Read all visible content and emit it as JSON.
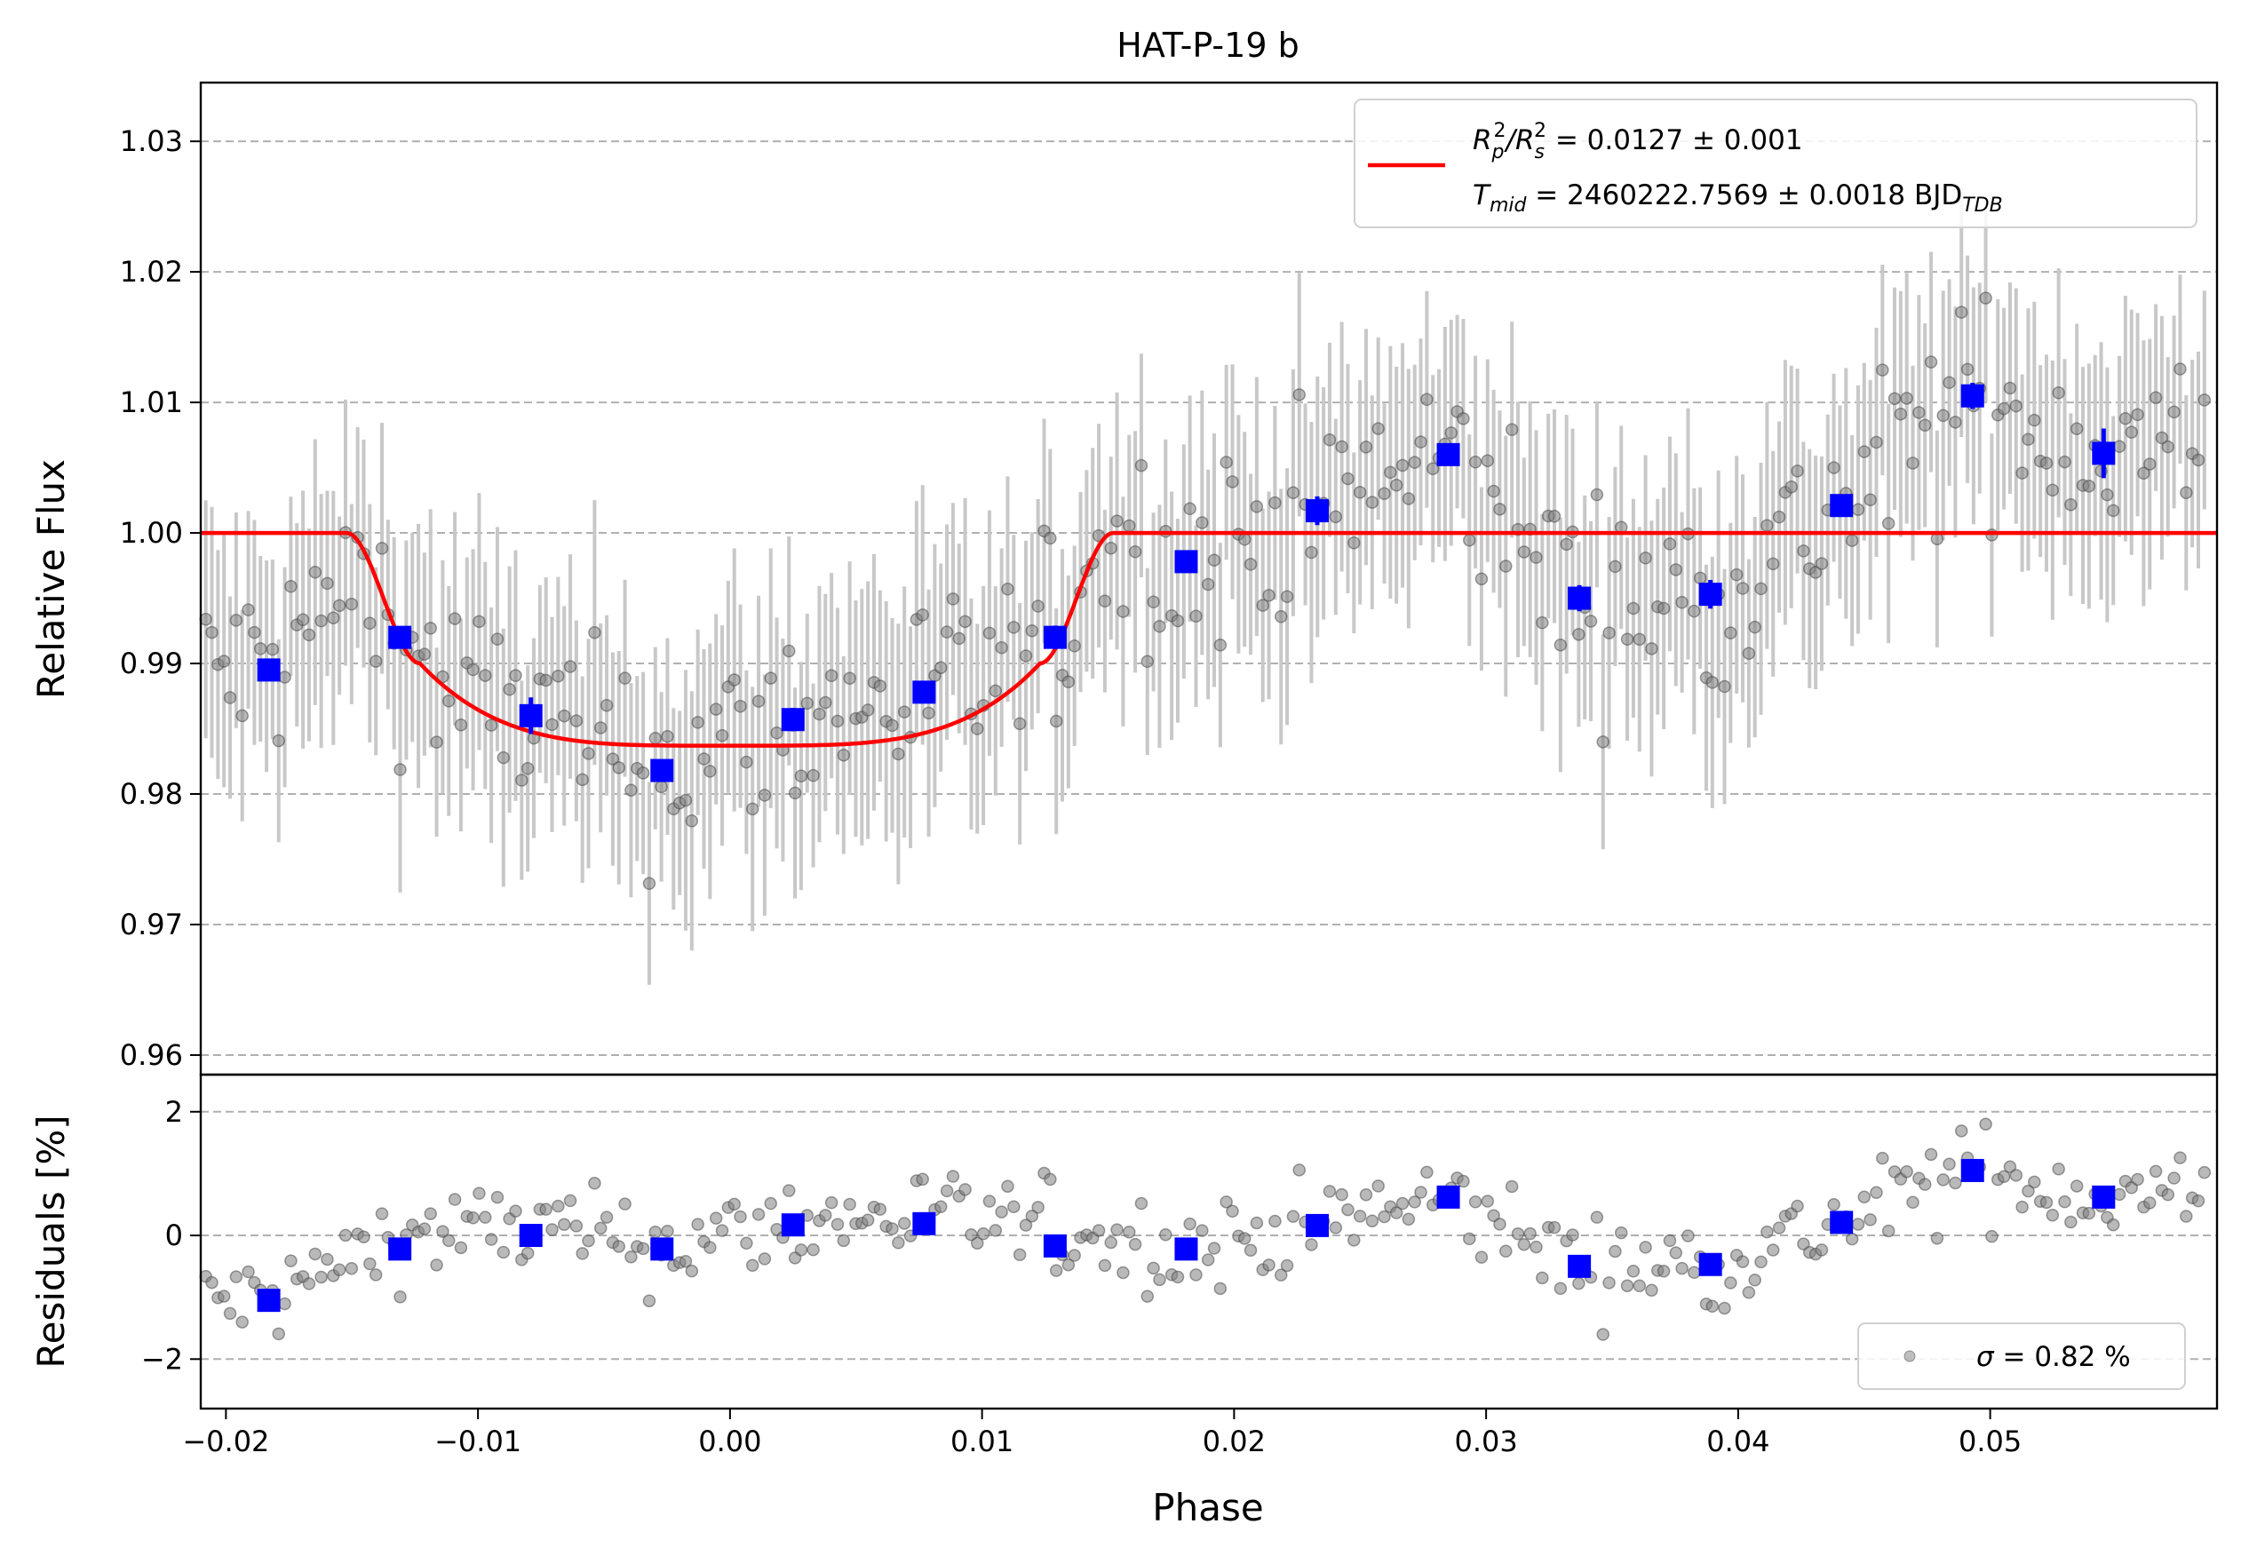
{
  "chart_data": [
    {
      "panel": "top",
      "type": "scatter",
      "title": "HAT-P-19 b",
      "xlabel": "",
      "ylabel": "Relative Flux",
      "xlim": [
        -0.021,
        0.059
      ],
      "ylim": [
        0.9585,
        1.0345
      ],
      "yticks": [
        0.96,
        0.97,
        0.98,
        0.99,
        1.0,
        1.01,
        1.02,
        1.03
      ],
      "ytick_labels": [
        "0.96",
        "0.97",
        "0.98",
        "0.99",
        "1.00",
        "1.01",
        "1.02",
        "1.03"
      ],
      "grid": "horizontal dashed",
      "legend": {
        "placement": "top-right",
        "line1_prefix": "R",
        "line1_sub1": "p",
        "line1_sup1": "2",
        "line1_sep": "/R",
        "line1_sub2": "s",
        "line1_sup2": "2",
        "line1_value": " = 0.0127 ± 0.001",
        "line2_prefix": "T",
        "line2_sub": "mid",
        "line2_value": " = 2460222.7569 ± 0.0018 BJD",
        "line2_unit_sub": "TDB"
      },
      "colors": {
        "model": "#ff0000",
        "binned": "#0000ff",
        "raw": "#808080",
        "errorbar": "#c8c8c8"
      },
      "model": {
        "baseline": 1.0,
        "depth": 0.0163,
        "t_mid": 0.0,
        "t_first_contact": -0.0152,
        "t_second_contact": -0.0123,
        "t_third_contact": 0.0123,
        "t_fourth_contact": 0.0152
      },
      "binned": {
        "x": [
          -0.0183,
          -0.0131,
          -0.0079,
          -0.0027,
          0.0025,
          0.0077,
          0.0129,
          0.0181,
          0.0233,
          0.0285,
          0.0337,
          0.0389,
          0.0441,
          0.0493,
          0.0545
        ],
        "y": [
          0.9895,
          0.992,
          0.986,
          0.9818,
          0.9857,
          0.9878,
          0.992,
          0.9978,
          1.0017,
          1.006,
          0.995,
          0.9953,
          1.0021,
          1.0105,
          1.0061
        ],
        "err": [
          0.0007,
          0.0007,
          0.0014,
          0.0007,
          0.0009,
          0.0008,
          0.0009,
          0.0008,
          0.0011,
          0.0008,
          0.001,
          0.0011,
          0.0008,
          0.001,
          0.0019
        ]
      },
      "raw": {
        "count": 330,
        "x_start": -0.0208,
        "x_end": 0.0585,
        "typical_err": 0.0085,
        "scatter": 0.0055
      }
    },
    {
      "panel": "bottom",
      "type": "scatter",
      "xlabel": "Phase",
      "ylabel": "Residuals [%]",
      "xlim": [
        -0.021,
        0.059
      ],
      "ylim": [
        -2.8,
        2.6
      ],
      "xticks": [
        -0.02,
        -0.01,
        0.0,
        0.01,
        0.02,
        0.03,
        0.04,
        0.05
      ],
      "xtick_labels": [
        "−0.02",
        "−0.01",
        "0.00",
        "0.01",
        "0.02",
        "0.03",
        "0.04",
        "0.05"
      ],
      "yticks": [
        -2,
        0,
        2
      ],
      "ytick_labels": [
        "−2",
        "0",
        "2"
      ],
      "grid": "horizontal dashed",
      "legend": {
        "placement": "lower-right",
        "symbol": "σ",
        "text": " = 0.82 %"
      },
      "binned": {
        "x": [
          -0.0183,
          -0.0131,
          -0.0079,
          -0.0027,
          0.0025,
          0.0077,
          0.0129,
          0.0181,
          0.0233,
          0.0285,
          0.0337,
          0.0389,
          0.0441,
          0.0493,
          0.0545
        ],
        "y": [
          -1.05,
          -0.22,
          0.0,
          -0.22,
          0.17,
          0.19,
          -0.17,
          -0.22,
          0.16,
          0.62,
          -0.5,
          -0.47,
          0.21,
          1.05,
          0.62
        ]
      }
    }
  ]
}
